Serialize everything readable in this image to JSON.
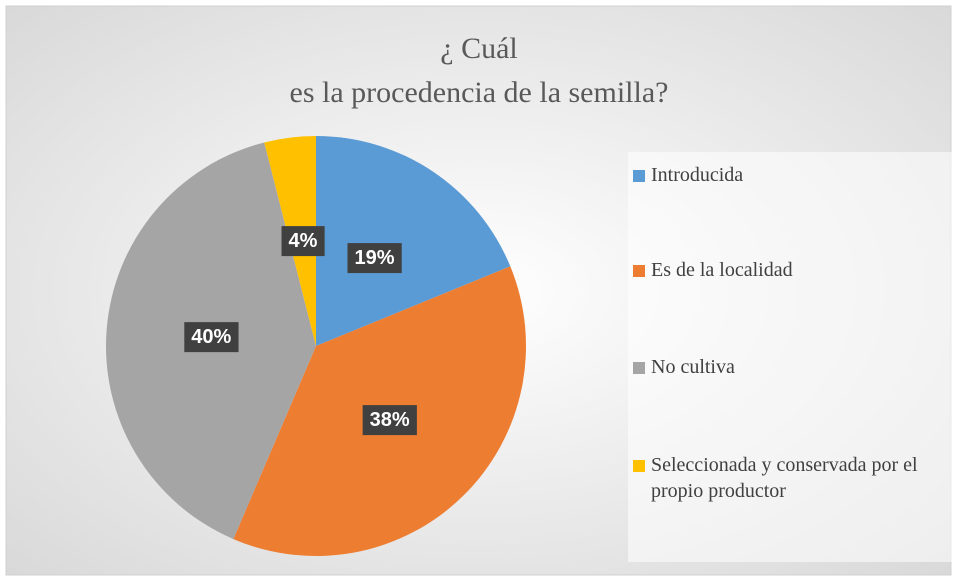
{
  "chart_data": {
    "type": "pie",
    "title": [
      "¿ Cuál",
      "es la procedencia de la semilla?"
    ],
    "categories": [
      "Introducida",
      "Es de la localidad",
      "No cultiva",
      "Seleccionada y conservada por el propio productor"
    ],
    "values": [
      19,
      38,
      40,
      4
    ],
    "value_labels": [
      "19%",
      "38%",
      "40%",
      "4%"
    ],
    "colors": [
      "#5b9bd5",
      "#ed7d31",
      "#a5a5a5",
      "#ffc000"
    ],
    "legend": "right"
  }
}
